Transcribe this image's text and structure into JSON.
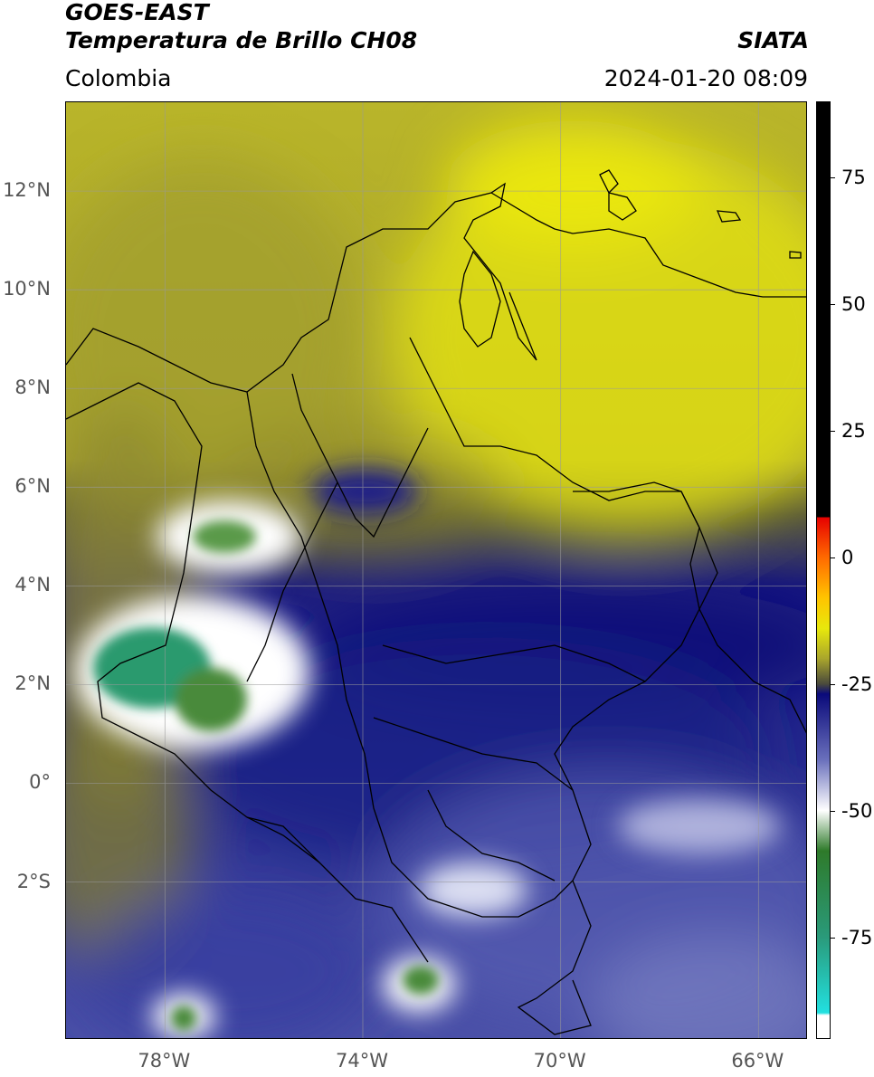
{
  "header": {
    "title_line1": "GOES-EAST",
    "title_line2": "Temperatura de Brillo CH08",
    "brand": "SIATA",
    "region": "Colombia",
    "datetime": "2024-01-20 08:09"
  },
  "map": {
    "extent": {
      "lon_min": -80,
      "lon_max": -65.0,
      "lat_min": -5.2,
      "lat_max": 13.8
    },
    "lat_ticks": [
      {
        "value": 12,
        "label": "12°N"
      },
      {
        "value": 10,
        "label": "10°N"
      },
      {
        "value": 8,
        "label": "8°N"
      },
      {
        "value": 6,
        "label": "6°N"
      },
      {
        "value": 4,
        "label": "4°N"
      },
      {
        "value": 2,
        "label": "2°N"
      },
      {
        "value": 0,
        "label": "0°"
      },
      {
        "value": -2,
        "label": "2°S"
      }
    ],
    "lon_ticks": [
      {
        "value": -78,
        "label": "78°W"
      },
      {
        "value": -74,
        "label": "74°W"
      },
      {
        "value": -70,
        "label": "70°W"
      },
      {
        "value": -66,
        "label": "66°W"
      }
    ],
    "colors": {
      "warm_yellow": "#e6e40c",
      "olive": "#b9b52a",
      "dark_olive": "#6f6f2e",
      "navy": "#16167e",
      "blue_mid": "#4a4ea6",
      "lavender": "#8a90c8",
      "white": "#ffffff",
      "green": "#3f8a3c",
      "teal": "#2aa87f"
    }
  },
  "colorbar": {
    "range": [
      -95,
      90
    ],
    "ticks": [
      {
        "value": 75,
        "label": "75"
      },
      {
        "value": 50,
        "label": "50"
      },
      {
        "value": 25,
        "label": "25"
      },
      {
        "value": 0,
        "label": "0"
      },
      {
        "value": -25,
        "label": "-25"
      },
      {
        "value": -50,
        "label": "-50"
      },
      {
        "value": -75,
        "label": "-75"
      }
    ],
    "stops": [
      {
        "value": 90,
        "color": "#000000"
      },
      {
        "value": 8,
        "color": "#000000"
      },
      {
        "value": 8,
        "color": "#e60000"
      },
      {
        "value": 0,
        "color": "#ff6a00"
      },
      {
        "value": -8,
        "color": "#ffc400"
      },
      {
        "value": -14,
        "color": "#e8e80c"
      },
      {
        "value": -20,
        "color": "#a9a52c"
      },
      {
        "value": -25,
        "color": "#4a4a3c"
      },
      {
        "value": -27,
        "color": "#0a0a7a"
      },
      {
        "value": -40,
        "color": "#6a70bc"
      },
      {
        "value": -50,
        "color": "#ffffff"
      },
      {
        "value": -58,
        "color": "#2e7a2a"
      },
      {
        "value": -75,
        "color": "#2a9a7a"
      },
      {
        "value": -90,
        "color": "#22e0e0"
      },
      {
        "value": -90.5,
        "color": "#ffffff"
      },
      {
        "value": -95,
        "color": "#ffffff"
      }
    ]
  }
}
